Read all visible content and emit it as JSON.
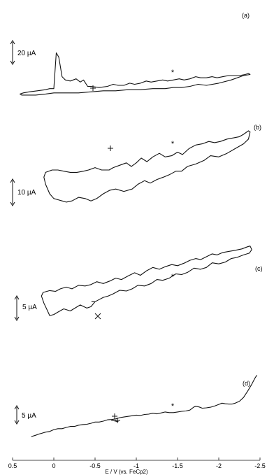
{
  "chart_data": {
    "type": "line",
    "xlabel": "E / V (vs. FeCp2)",
    "xlim": [
      0.5,
      -2.5
    ],
    "x_ticks": [
      "0.5",
      "0",
      "-0.5",
      "-1",
      "-1.5",
      "-2",
      "-2.5"
    ],
    "x_tick_values": [
      0.5,
      0,
      -0.5,
      -1,
      -1.5,
      -2,
      -2.5
    ],
    "grid": false,
    "panels": [
      {
        "label": "(a)",
        "scale_bar": "20 µA",
        "scale_bar_value_uA": 20,
        "star_potential": -1.43,
        "start_marker_potential": -0.45,
        "forward": [
          [
            0.05,
            -3
          ],
          [
            0.0,
            -3
          ],
          [
            -0.03,
            30
          ],
          [
            -0.06,
            26
          ],
          [
            -0.1,
            8
          ],
          [
            -0.14,
            5
          ],
          [
            -0.2,
            4
          ],
          [
            -0.27,
            6
          ],
          [
            -0.32,
            3
          ],
          [
            -0.36,
            5
          ],
          [
            -0.41,
            -1
          ],
          [
            -0.45,
            -1
          ],
          [
            -0.55,
            -2
          ],
          [
            -0.65,
            -1
          ],
          [
            -0.72,
            1
          ],
          [
            -0.78,
            0
          ],
          [
            -0.85,
            0
          ],
          [
            -0.92,
            2
          ],
          [
            -0.98,
            1
          ],
          [
            -1.05,
            2
          ],
          [
            -1.12,
            4
          ],
          [
            -1.18,
            3
          ],
          [
            -1.25,
            4
          ],
          [
            -1.32,
            5
          ],
          [
            -1.38,
            4
          ],
          [
            -1.45,
            5
          ],
          [
            -1.52,
            6
          ],
          [
            -1.58,
            5
          ],
          [
            -1.65,
            6
          ],
          [
            -1.72,
            8
          ],
          [
            -1.78,
            7
          ],
          [
            -1.85,
            7
          ],
          [
            -1.92,
            8
          ],
          [
            -1.98,
            7
          ],
          [
            -2.05,
            8
          ],
          [
            -2.12,
            9
          ],
          [
            -2.18,
            9
          ],
          [
            -2.25,
            9
          ],
          [
            -2.32,
            10
          ],
          [
            -2.36,
            11
          ],
          [
            -2.38,
            10
          ],
          [
            -2.3,
            9
          ],
          [
            -2.15,
            5
          ],
          [
            -2.0,
            2
          ],
          [
            -1.85,
            0
          ],
          [
            -1.75,
            1
          ],
          [
            -1.65,
            -1
          ],
          [
            -1.55,
            -2
          ],
          [
            -1.45,
            -2
          ],
          [
            -1.35,
            -3
          ],
          [
            -1.2,
            -3
          ],
          [
            -1.05,
            -4
          ],
          [
            -0.9,
            -4
          ],
          [
            -0.75,
            -5
          ],
          [
            -0.6,
            -5
          ],
          [
            -0.45,
            -6
          ],
          [
            -0.3,
            -7
          ],
          [
            -0.15,
            -7
          ],
          [
            0.0,
            -7
          ],
          [
            0.1,
            -8
          ],
          [
            0.22,
            -9
          ],
          [
            0.3,
            -9
          ],
          [
            0.39,
            -9
          ],
          [
            0.41,
            -8
          ],
          [
            0.37,
            -7
          ],
          [
            0.3,
            -6
          ],
          [
            0.2,
            -5
          ],
          [
            0.1,
            -4
          ],
          [
            0.05,
            -3
          ]
        ]
      },
      {
        "label": "(b)",
        "scale_bar": "10 µA",
        "scale_bar_value_uA": 10,
        "star_potential": -1.43,
        "start_marker_potential": -0.67,
        "forward": [
          [
            -0.67,
            0
          ],
          [
            -0.72,
            1
          ],
          [
            -0.8,
            2
          ],
          [
            -0.88,
            3
          ],
          [
            -0.94,
            1.5
          ],
          [
            -1.0,
            3
          ],
          [
            -1.06,
            5
          ],
          [
            -1.13,
            3.5
          ],
          [
            -1.2,
            5.5
          ],
          [
            -1.28,
            7
          ],
          [
            -1.35,
            5.5
          ],
          [
            -1.43,
            6
          ],
          [
            -1.5,
            7.5
          ],
          [
            -1.56,
            6.5
          ],
          [
            -1.64,
            9
          ],
          [
            -1.72,
            10.5
          ],
          [
            -1.8,
            11
          ],
          [
            -1.88,
            12
          ],
          [
            -1.95,
            11.5
          ],
          [
            -2.02,
            12
          ],
          [
            -2.1,
            13
          ],
          [
            -2.18,
            13.5
          ],
          [
            -2.25,
            14
          ],
          [
            -2.3,
            15
          ],
          [
            -2.36,
            16.5
          ],
          [
            -2.38,
            16
          ],
          [
            -2.36,
            13
          ],
          [
            -2.3,
            11
          ],
          [
            -2.2,
            9
          ],
          [
            -2.1,
            7
          ],
          [
            -2.0,
            5.5
          ],
          [
            -1.9,
            6
          ],
          [
            -1.82,
            4
          ],
          [
            -1.72,
            2.5
          ],
          [
            -1.62,
            1.5
          ],
          [
            -1.55,
            -0.5
          ],
          [
            -1.48,
            -0.5
          ],
          [
            -1.4,
            -2
          ],
          [
            -1.33,
            -3
          ],
          [
            -1.25,
            -4
          ],
          [
            -1.17,
            -5.5
          ],
          [
            -1.1,
            -4.5
          ],
          [
            -1.02,
            -6
          ],
          [
            -0.95,
            -8
          ],
          [
            -0.85,
            -9
          ],
          [
            -0.75,
            -8
          ],
          [
            -0.68,
            -8.5
          ],
          [
            -0.6,
            -10
          ],
          [
            -0.52,
            -12
          ],
          [
            -0.45,
            -13
          ],
          [
            -0.38,
            -12
          ],
          [
            -0.3,
            -11.5
          ],
          [
            -0.22,
            -13
          ],
          [
            -0.15,
            -13.5
          ],
          [
            -0.1,
            -13
          ],
          [
            -0.05,
            -12.5
          ],
          [
            0.0,
            -12
          ],
          [
            0.05,
            -10
          ],
          [
            0.1,
            -6
          ],
          [
            0.12,
            -3
          ],
          [
            0.1,
            -1
          ],
          [
            0.02,
            0
          ],
          [
            -0.05,
            0
          ],
          [
            -0.12,
            -0.5
          ],
          [
            -0.2,
            -1
          ],
          [
            -0.28,
            -1
          ],
          [
            -0.36,
            -0.5
          ],
          [
            -0.42,
            0
          ],
          [
            -0.5,
            1
          ],
          [
            -0.58,
            0
          ],
          [
            -0.67,
            0
          ]
        ]
      },
      {
        "label": "(c)",
        "scale_bar": "5 µA",
        "scale_bar_value_uA": 5,
        "star_potential": -1.43,
        "start_marker_potential": -0.5,
        "forward": [
          [
            0.05,
            -6.5
          ],
          [
            0.08,
            -5
          ],
          [
            0.12,
            -3
          ],
          [
            0.15,
            -1
          ],
          [
            0.13,
            0
          ],
          [
            0.05,
            0.5
          ],
          [
            -0.02,
            0.3
          ],
          [
            -0.08,
            1
          ],
          [
            -0.15,
            1.5
          ],
          [
            -0.22,
            1
          ],
          [
            -0.3,
            2
          ],
          [
            -0.38,
            1.8
          ],
          [
            -0.45,
            2.2
          ],
          [
            -0.52,
            3
          ],
          [
            -0.6,
            2.5
          ],
          [
            -0.68,
            3.2
          ],
          [
            -0.75,
            4
          ],
          [
            -0.82,
            3.6
          ],
          [
            -0.9,
            4.6
          ],
          [
            -0.98,
            5.5
          ],
          [
            -1.05,
            4.8
          ],
          [
            -1.12,
            6
          ],
          [
            -1.2,
            7
          ],
          [
            -1.28,
            6.5
          ],
          [
            -1.35,
            7.2
          ],
          [
            -1.43,
            7.8
          ],
          [
            -1.5,
            7.5
          ],
          [
            -1.58,
            8.2
          ],
          [
            -1.65,
            9
          ],
          [
            -1.72,
            9.5
          ],
          [
            -1.78,
            9.2
          ],
          [
            -1.85,
            10
          ],
          [
            -1.92,
            10.8
          ],
          [
            -1.98,
            10.5
          ],
          [
            -2.05,
            11.2
          ],
          [
            -2.12,
            11.5
          ],
          [
            -2.2,
            11.8
          ],
          [
            -2.28,
            12.2
          ],
          [
            -2.35,
            12.8
          ],
          [
            -2.38,
            13
          ],
          [
            -2.4,
            12
          ],
          [
            -2.37,
            11
          ],
          [
            -2.3,
            10.5
          ],
          [
            -2.22,
            9.8
          ],
          [
            -2.15,
            9.5
          ],
          [
            -2.08,
            8.5
          ],
          [
            -2.0,
            8
          ],
          [
            -1.92,
            8.3
          ],
          [
            -1.85,
            7
          ],
          [
            -1.78,
            6.5
          ],
          [
            -1.7,
            6.8
          ],
          [
            -1.62,
            5.6
          ],
          [
            -1.55,
            5
          ],
          [
            -1.48,
            5.2
          ],
          [
            -1.4,
            4
          ],
          [
            -1.32,
            3.4
          ],
          [
            -1.25,
            3.6
          ],
          [
            -1.18,
            2.5
          ],
          [
            -1.1,
            1.8
          ],
          [
            -1.02,
            2
          ],
          [
            -0.95,
            1
          ],
          [
            -0.88,
            0.4
          ],
          [
            -0.8,
            0.6
          ],
          [
            -0.72,
            -0.4
          ],
          [
            -0.66,
            -1
          ],
          [
            -0.6,
            -1.4
          ],
          [
            -0.55,
            -2
          ],
          [
            -0.5,
            -2.6
          ],
          [
            -0.46,
            -2.5
          ],
          [
            -0.5,
            -2.6
          ],
          [
            -0.45,
            -4
          ],
          [
            -0.4,
            -4.4
          ],
          [
            -0.32,
            -3.5
          ],
          [
            -0.25,
            -4.5
          ],
          [
            -0.2,
            -5.2
          ],
          [
            -0.12,
            -4.6
          ],
          [
            -0.05,
            -5.5
          ],
          [
            0.0,
            -6.2
          ],
          [
            0.05,
            -6.5
          ]
        ]
      },
      {
        "label": "(d)",
        "scale_bar": "5 µA",
        "scale_bar_value_uA": 5,
        "star_potential": -1.43,
        "start_marker_potential": -0.7,
        "forward": [
          [
            0.27,
            -6
          ],
          [
            0.22,
            -5.6
          ],
          [
            0.18,
            -5.2
          ],
          [
            0.15,
            -5
          ],
          [
            0.1,
            -4.6
          ],
          [
            0.05,
            -4.4
          ],
          [
            0.0,
            -3.8
          ],
          [
            -0.05,
            -3.5
          ],
          [
            -0.1,
            -3.5
          ],
          [
            -0.15,
            -3.1
          ],
          [
            -0.2,
            -2.8
          ],
          [
            -0.25,
            -2.8
          ],
          [
            -0.3,
            -2.4
          ],
          [
            -0.35,
            -2.2
          ],
          [
            -0.4,
            -2.1
          ],
          [
            -0.45,
            -1.8
          ],
          [
            -0.5,
            -1.4
          ],
          [
            -0.55,
            -1.4
          ],
          [
            -0.6,
            -1.1
          ],
          [
            -0.65,
            -0.7
          ],
          [
            -0.7,
            -0.6
          ],
          [
            -0.75,
            -0.4
          ],
          [
            -0.8,
            0
          ],
          [
            -0.85,
            0.2
          ],
          [
            -0.9,
            0.4
          ],
          [
            -0.95,
            0.6
          ],
          [
            -1.0,
            0.8
          ],
          [
            -1.05,
            0.7
          ],
          [
            -1.1,
            1.0
          ],
          [
            -1.15,
            1.1
          ],
          [
            -1.2,
            1.4
          ],
          [
            -1.25,
            1.2
          ],
          [
            -1.3,
            1.5
          ],
          [
            -1.35,
            1.8
          ],
          [
            -1.4,
            1.6
          ],
          [
            -1.45,
            1.6
          ],
          [
            -1.5,
            1.8
          ],
          [
            -1.55,
            2.0
          ],
          [
            -1.6,
            2.1
          ],
          [
            -1.65,
            2.4
          ],
          [
            -1.7,
            3.4
          ],
          [
            -1.72,
            3.6
          ],
          [
            -1.76,
            3.4
          ],
          [
            -1.8,
            3.0
          ],
          [
            -1.85,
            3.1
          ],
          [
            -1.9,
            3.3
          ],
          [
            -1.95,
            3.7
          ],
          [
            -2.0,
            4.2
          ],
          [
            -2.04,
            4.6
          ],
          [
            -2.08,
            4.4
          ],
          [
            -2.12,
            4.3
          ],
          [
            -2.16,
            4.3
          ],
          [
            -2.2,
            4.6
          ],
          [
            -2.25,
            5.2
          ],
          [
            -2.3,
            6.4
          ],
          [
            -2.35,
            8.4
          ],
          [
            -2.4,
            10.6
          ],
          [
            -2.44,
            12.6
          ],
          [
            -2.46,
            13.4
          ]
        ],
        "return": [
          [
            -0.7,
            -0.9
          ],
          [
            -0.73,
            -1.0
          ],
          [
            -0.76,
            -1.2
          ],
          [
            -0.78,
            -1.2
          ]
        ]
      }
    ]
  }
}
